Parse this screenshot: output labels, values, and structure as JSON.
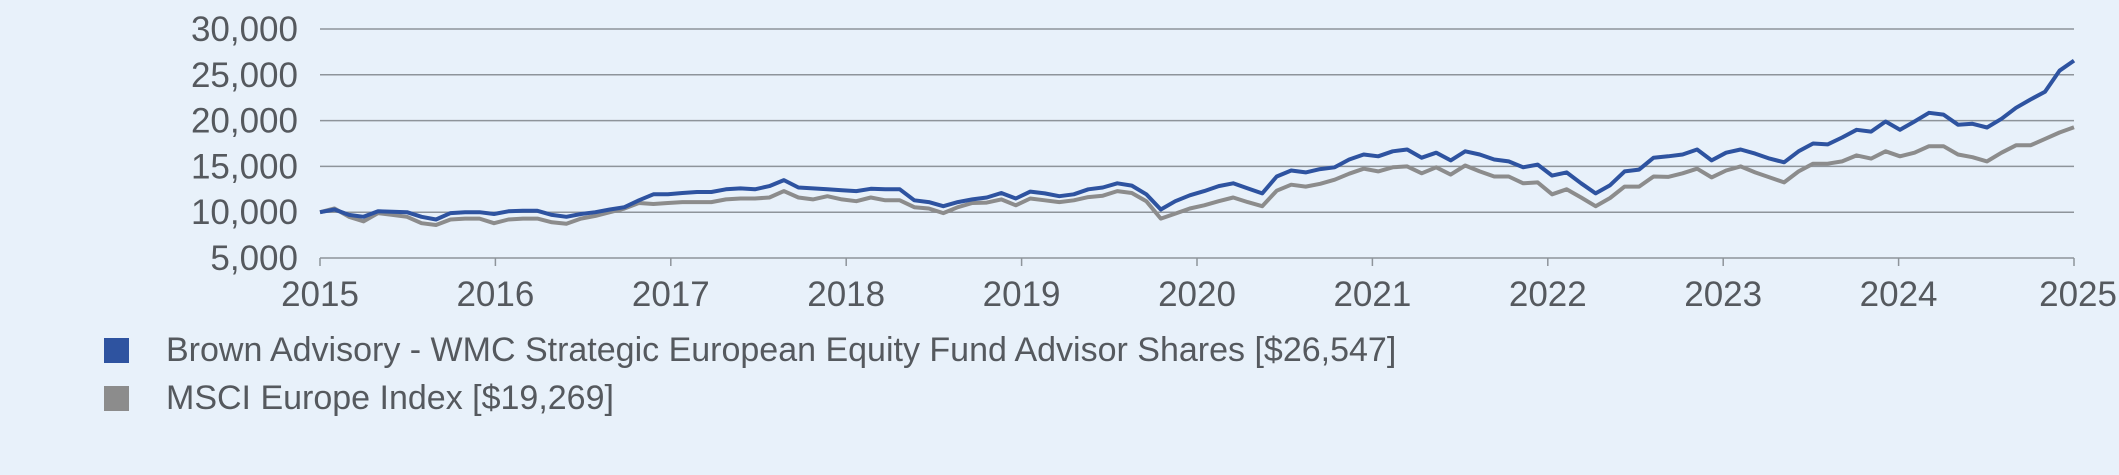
{
  "chart_data": {
    "type": "line",
    "title": "",
    "xlabel": "",
    "ylabel": "",
    "x_ticks": [
      "2015",
      "2016",
      "2017",
      "2018",
      "2019",
      "2020",
      "2021",
      "2022",
      "2023",
      "2024",
      "2025"
    ],
    "y_ticks": [
      "5,000",
      "10,000",
      "15,000",
      "20,000",
      "25,000",
      "30,000"
    ],
    "y_tick_values": [
      5000,
      10000,
      15000,
      20000,
      25000,
      30000
    ],
    "xlim": [
      2015,
      2025
    ],
    "ylim": [
      5000,
      30000
    ],
    "grid": true,
    "legend_position": "bottom-left",
    "series": [
      {
        "name": "Brown Advisory - WMC Strategic European Equity Fund Advisor Shares [$26,547]",
        "color": "#2E53A0",
        "values": [
          10000,
          10300,
          9700,
          9500,
          10100,
          10050,
          10000,
          9500,
          9200,
          9900,
          10000,
          10000,
          9800,
          10100,
          10150,
          10150,
          9700,
          9500,
          9800,
          10000,
          10300,
          10550,
          11300,
          11950,
          11950,
          12100,
          12200,
          12200,
          12500,
          12600,
          12500,
          12850,
          13500,
          12700,
          12600,
          12500,
          12400,
          12300,
          12550,
          12500,
          12500,
          11300,
          11100,
          10650,
          11100,
          11400,
          11600,
          12100,
          11500,
          12250,
          12050,
          11750,
          11950,
          12500,
          12700,
          13150,
          12900,
          11950,
          10300,
          11200,
          11850,
          12300,
          12850,
          13150,
          12600,
          12050,
          13900,
          14550,
          14350,
          14700,
          14900,
          15750,
          16300,
          16100,
          16650,
          16850,
          15950,
          16500,
          15650,
          16650,
          16300,
          15750,
          15550,
          14900,
          15200,
          14000,
          14350,
          13150,
          12050,
          12950,
          14450,
          14650,
          15950,
          16100,
          16300,
          16850,
          15650,
          16500,
          16850,
          16400,
          15850,
          15450,
          16650,
          17500,
          17400,
          18150,
          19000,
          18800,
          19900,
          19000,
          19900,
          20850,
          20650,
          19550,
          19650,
          19250,
          20200,
          21400,
          22300,
          23150,
          25450,
          26547
        ]
      },
      {
        "name": "MSCI Europe Index [$19,269]",
        "color": "#8C8C8C",
        "values": [
          10000,
          10400,
          9500,
          9000,
          9900,
          9700,
          9500,
          8800,
          8600,
          9200,
          9300,
          9300,
          8800,
          9200,
          9300,
          9300,
          8900,
          8750,
          9300,
          9600,
          10000,
          10400,
          11000,
          10900,
          11000,
          11100,
          11100,
          11100,
          11400,
          11500,
          11500,
          11600,
          12300,
          11600,
          11400,
          11750,
          11400,
          11200,
          11600,
          11300,
          11300,
          10550,
          10400,
          9900,
          10550,
          11000,
          11050,
          11400,
          10750,
          11500,
          11300,
          11100,
          11300,
          11650,
          11800,
          12300,
          12100,
          11200,
          9300,
          9850,
          10400,
          10750,
          11200,
          11600,
          11100,
          10650,
          12350,
          13000,
          12800,
          13100,
          13550,
          14200,
          14750,
          14450,
          14900,
          15000,
          14250,
          14900,
          14100,
          15100,
          14450,
          13900,
          13900,
          13150,
          13250,
          11950,
          12500,
          11600,
          10650,
          11550,
          12800,
          12800,
          13900,
          13850,
          14250,
          14750,
          13800,
          14550,
          15000,
          14350,
          13800,
          13250,
          14450,
          15300,
          15300,
          15550,
          16200,
          15850,
          16650,
          16100,
          16500,
          17200,
          17200,
          16300,
          16000,
          15550,
          16500,
          17300,
          17300,
          18000,
          18700,
          19269
        ]
      }
    ]
  },
  "legend": {
    "items": [
      {
        "label": "Brown Advisory - WMC Strategic European Equity Fund Advisor Shares [$26,547]",
        "color": "#2E53A0"
      },
      {
        "label": "MSCI Europe Index [$19,269]",
        "color": "#8C8C8C"
      }
    ]
  }
}
